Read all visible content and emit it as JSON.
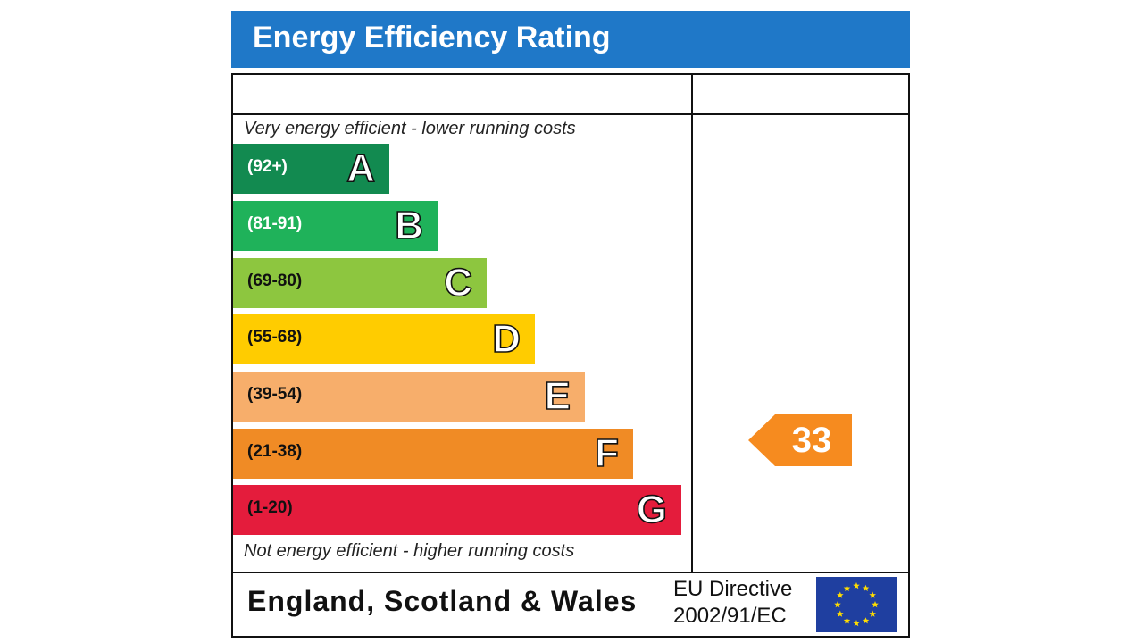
{
  "header": {
    "title": "Energy Efficiency Rating"
  },
  "captions": {
    "top": "Very energy efficient - lower running costs",
    "bottom": "Not energy efficient - higher running costs"
  },
  "chart_data": {
    "type": "bar",
    "title": "Energy Efficiency Rating",
    "categories": [
      "A",
      "B",
      "C",
      "D",
      "E",
      "F",
      "G"
    ],
    "ranges": [
      "(92+)",
      "(81-91)",
      "(69-80)",
      "(55-68)",
      "(39-54)",
      "(21-38)",
      "(1-20)"
    ],
    "colors": [
      "#128a50",
      "#1fb25a",
      "#8dc63f",
      "#ffcc00",
      "#f7ae6b",
      "#f08b25",
      "#e41c3c"
    ],
    "range_text_colors": [
      "#ffffff",
      "#ffffff",
      "#111111",
      "#111111",
      "#111111",
      "#111111",
      "#111111"
    ],
    "current": {
      "value": 33,
      "band": "F",
      "color": "#f68b1f"
    }
  },
  "footer": {
    "region": "England, Scotland & Wales",
    "directive_line1": "EU Directive",
    "directive_line2": "2002/91/EC"
  },
  "icons": {
    "eu_flag": "eu-flag-icon"
  }
}
